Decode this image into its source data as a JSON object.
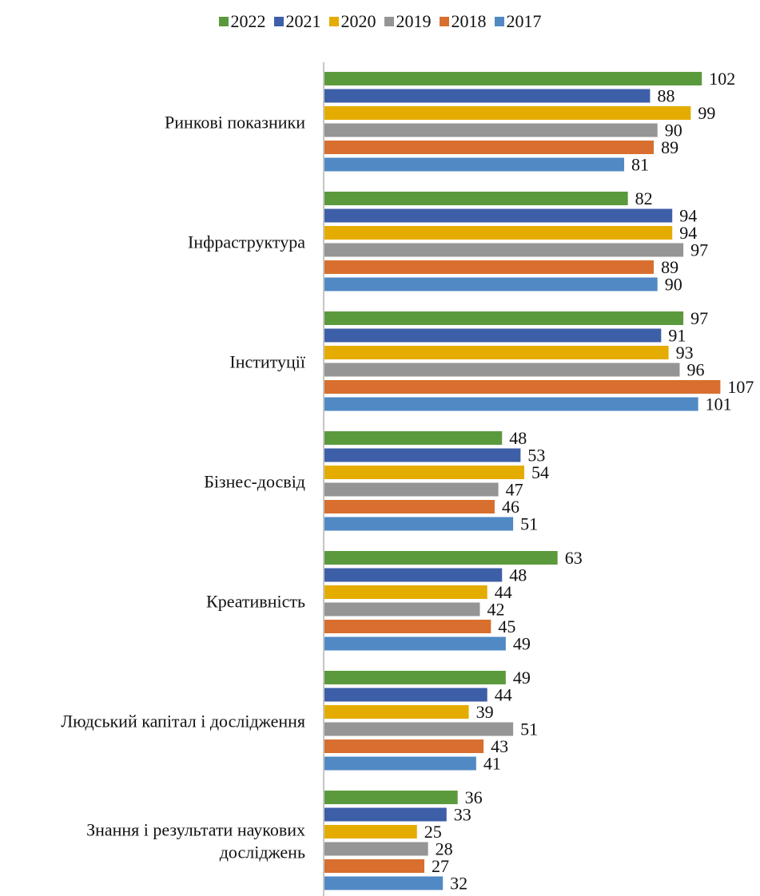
{
  "chart_data": {
    "type": "bar",
    "orientation": "horizontal",
    "categories": [
      [
        "Ринкові показники"
      ],
      [
        "Інфраструктура"
      ],
      [
        "Інституції"
      ],
      [
        "Бізнес-досвід"
      ],
      [
        "Креативність"
      ],
      [
        "Людський капітал і дослідження"
      ],
      [
        "Знання і результати наукових",
        "досліджень"
      ]
    ],
    "series": [
      {
        "name": "2022",
        "color": "#5b9a3c",
        "values": [
          102,
          82,
          97,
          48,
          63,
          49,
          36
        ]
      },
      {
        "name": "2021",
        "color": "#3d5fa8",
        "values": [
          88,
          94,
          91,
          53,
          48,
          44,
          33
        ]
      },
      {
        "name": "2020",
        "color": "#e5ac00",
        "values": [
          99,
          94,
          93,
          54,
          44,
          39,
          25
        ]
      },
      {
        "name": "2019",
        "color": "#959595",
        "values": [
          90,
          97,
          96,
          47,
          42,
          51,
          28
        ]
      },
      {
        "name": "2018",
        "color": "#d86f2e",
        "values": [
          89,
          89,
          107,
          46,
          45,
          43,
          27
        ]
      },
      {
        "name": "2017",
        "color": "#5189c4",
        "values": [
          81,
          90,
          101,
          51,
          49,
          41,
          32
        ]
      }
    ],
    "xlim": [
      0,
      110
    ],
    "grid": false,
    "legend": "top-center"
  }
}
